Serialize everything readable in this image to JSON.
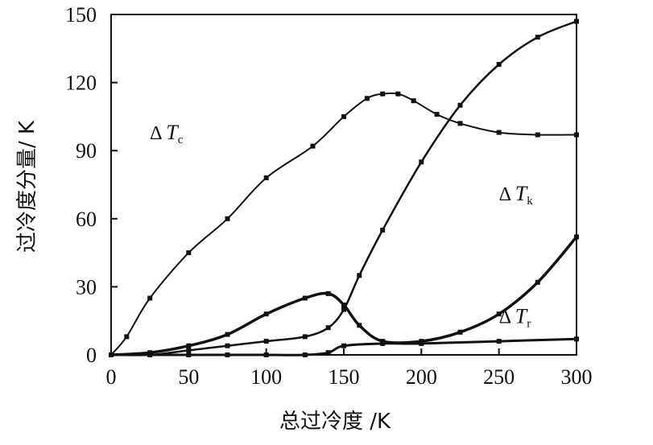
{
  "chart_data": {
    "type": "line",
    "title": "",
    "xlabel": "总过冷度 /K",
    "ylabel": "过冷度分量/ K",
    "xlim": [
      0,
      300
    ],
    "ylim": [
      0,
      150
    ],
    "xticks": [
      0,
      50,
      100,
      150,
      200,
      250,
      300
    ],
    "yticks": [
      0,
      30,
      60,
      90,
      120,
      150
    ],
    "grid": false,
    "legend": "none",
    "series": [
      {
        "name": "ΔTc",
        "label_main": "Δ T",
        "label_sub": "c",
        "stroke": "#111111",
        "x": [
          0,
          10,
          25,
          50,
          75,
          100,
          130,
          150,
          165,
          175,
          185,
          195,
          210,
          225,
          250,
          275,
          300
        ],
        "y": [
          0,
          8,
          25,
          45,
          60,
          78,
          92,
          105,
          113,
          115,
          115,
          112,
          106,
          102,
          98,
          97,
          97
        ]
      },
      {
        "name": "ΔTt",
        "label_main": "Δ T",
        "label_sub": "t",
        "stroke": "#111111",
        "x": [
          0,
          25,
          50,
          75,
          100,
          125,
          140,
          150,
          160,
          175,
          200,
          225,
          250,
          275,
          300
        ],
        "y": [
          0,
          0,
          2,
          4,
          6,
          8,
          12,
          20,
          35,
          55,
          85,
          110,
          128,
          140,
          147
        ]
      },
      {
        "name": "ΔTk",
        "label_main": "Δ T",
        "label_sub": "k",
        "stroke": "#111111",
        "x": [
          0,
          25,
          50,
          75,
          100,
          125,
          140,
          150,
          160,
          175,
          200,
          225,
          250,
          275,
          300
        ],
        "y": [
          0,
          1,
          4,
          9,
          18,
          25,
          27,
          22,
          13,
          6,
          6,
          10,
          18,
          32,
          52
        ]
      },
      {
        "name": "ΔTr",
        "label_main": "Δ T",
        "label_sub": "r",
        "stroke": "#111111",
        "x": [
          0,
          50,
          75,
          100,
          125,
          140,
          150,
          175,
          200,
          250,
          300
        ],
        "y": [
          0,
          0,
          0,
          0,
          0,
          1,
          4,
          5,
          5,
          6,
          7
        ]
      }
    ]
  }
}
